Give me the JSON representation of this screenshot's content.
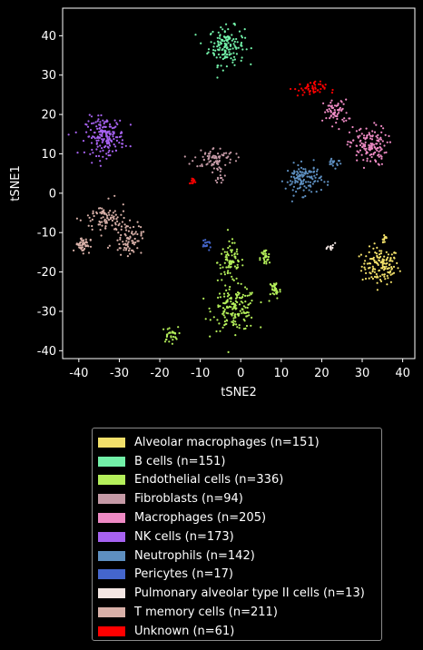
{
  "chart_data": {
    "type": "scatter",
    "title": "",
    "xlabel": "tSNE2",
    "ylabel": "tSNE1",
    "xlim": [
      -44,
      43
    ],
    "ylim": [
      -42,
      47
    ],
    "xticks": [
      -40,
      -30,
      -20,
      -10,
      0,
      10,
      20,
      30,
      40
    ],
    "yticks": [
      -40,
      -30,
      -20,
      -10,
      0,
      10,
      20,
      30,
      40
    ],
    "grid": false,
    "legend_position": "below",
    "background": "#000000",
    "series": [
      {
        "name": "Alveolar macrophages (n=151)",
        "color": "#f2e06a",
        "clusters": [
          {
            "cx": 34.5,
            "cy": -18.5,
            "sx": 2.3,
            "sy": 2.3,
            "n": 138
          },
          {
            "cx": 35.5,
            "cy": -11.5,
            "sx": 0.4,
            "sy": 0.8,
            "n": 13
          }
        ]
      },
      {
        "name": "B cells (n=151)",
        "color": "#72f0a8",
        "clusters": [
          {
            "cx": -3.5,
            "cy": 37.5,
            "sx": 2.2,
            "sy": 2.4,
            "n": 151
          }
        ]
      },
      {
        "name": "Endothelial cells (n=336)",
        "color": "#b4ef5a",
        "clusters": [
          {
            "cx": -2.5,
            "cy": -17.5,
            "sx": 1.6,
            "sy": 2.5,
            "n": 80
          },
          {
            "cx": -1.5,
            "cy": -29.5,
            "sx": 2.7,
            "sy": 2.7,
            "n": 160
          },
          {
            "cx": -17.5,
            "cy": -36.0,
            "sx": 1.0,
            "sy": 1.0,
            "n": 30
          },
          {
            "cx": 6.0,
            "cy": -16.5,
            "sx": 0.6,
            "sy": 1.2,
            "n": 30
          },
          {
            "cx": 8.5,
            "cy": -24.5,
            "sx": 0.7,
            "sy": 1.2,
            "n": 36
          }
        ]
      },
      {
        "name": "Fibroblasts (n=94)",
        "color": "#c59aa6",
        "clusters": [
          {
            "cx": -6.5,
            "cy": 9.0,
            "sx": 2.5,
            "sy": 1.3,
            "n": 76
          },
          {
            "cx": -5.0,
            "cy": 5.0,
            "sx": 0.6,
            "sy": 1.2,
            "n": 18
          }
        ]
      },
      {
        "name": "Macrophages (n=205)",
        "color": "#ee8ac4",
        "clusters": [
          {
            "cx": 31.5,
            "cy": 12.0,
            "sx": 2.3,
            "sy": 2.5,
            "n": 140
          },
          {
            "cx": 23.5,
            "cy": 20.5,
            "sx": 1.5,
            "sy": 1.6,
            "n": 65
          }
        ]
      },
      {
        "name": "NK cells (n=173)",
        "color": "#a662f0",
        "clusters": [
          {
            "cx": -33.5,
            "cy": 14.5,
            "sx": 2.4,
            "sy": 2.4,
            "n": 173
          }
        ]
      },
      {
        "name": "Neutrophils (n=142)",
        "color": "#5e8fc0",
        "clusters": [
          {
            "cx": 15.5,
            "cy": 3.5,
            "sx": 2.2,
            "sy": 1.9,
            "n": 125
          },
          {
            "cx": 23.0,
            "cy": 8.0,
            "sx": 1.0,
            "sy": 0.7,
            "n": 17
          }
        ]
      },
      {
        "name": "Pericytes (n=17)",
        "color": "#4466cc",
        "clusters": [
          {
            "cx": -8.5,
            "cy": -13.2,
            "sx": 0.6,
            "sy": 0.5,
            "n": 17
          }
        ]
      },
      {
        "name": "Pulmonary alveolar type II cells (n=13)",
        "color": "#f3e6e3",
        "clusters": [
          {
            "cx": 22.5,
            "cy": -13.8,
            "sx": 0.5,
            "sy": 0.5,
            "n": 13
          }
        ]
      },
      {
        "name": "T memory cells (n=211)",
        "color": "#d8b0a8",
        "clusters": [
          {
            "cx": -33.5,
            "cy": -6.5,
            "sx": 2.7,
            "sy": 2.0,
            "n": 80
          },
          {
            "cx": -28.0,
            "cy": -11.5,
            "sx": 1.8,
            "sy": 2.0,
            "n": 80
          },
          {
            "cx": -39.0,
            "cy": -13.0,
            "sx": 0.9,
            "sy": 1.0,
            "n": 51
          }
        ]
      },
      {
        "name": "Unknown (n=61)",
        "color": "#ff0000",
        "clusters": [
          {
            "cx": 17.0,
            "cy": 26.5,
            "sx": 2.0,
            "sy": 0.9,
            "n": 50
          },
          {
            "cx": -12.0,
            "cy": 3.0,
            "sx": 0.3,
            "sy": 0.5,
            "n": 11
          }
        ]
      }
    ]
  }
}
